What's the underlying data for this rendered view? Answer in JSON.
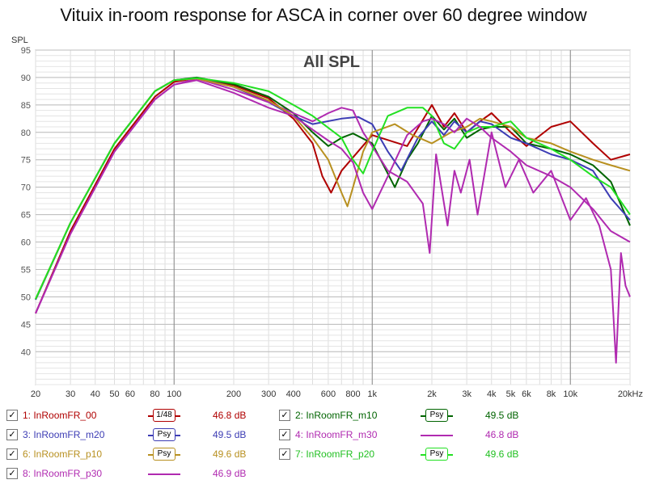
{
  "title": "Vituix in-room response for ASCA in corner over 60 degree window",
  "chart_data": {
    "type": "line",
    "title": "All SPL",
    "ylabel": "SPL",
    "xlabel": "",
    "xscale": "log",
    "xlim": [
      20,
      20000
    ],
    "ylim": [
      34,
      95
    ],
    "grid": true,
    "legend_position": "bottom",
    "x_ticks": [
      {
        "v": 20,
        "t": "20"
      },
      {
        "v": 30,
        "t": "30"
      },
      {
        "v": 40,
        "t": "40"
      },
      {
        "v": 50,
        "t": "50"
      },
      {
        "v": 60,
        "t": "60"
      },
      {
        "v": 80,
        "t": "80"
      },
      {
        "v": 100,
        "t": "100"
      },
      {
        "v": 200,
        "t": "200"
      },
      {
        "v": 300,
        "t": "300"
      },
      {
        "v": 400,
        "t": "400"
      },
      {
        "v": 600,
        "t": "600"
      },
      {
        "v": 800,
        "t": "800"
      },
      {
        "v": 1000,
        "t": "1k"
      },
      {
        "v": 2000,
        "t": "2k"
      },
      {
        "v": 3000,
        "t": "3k"
      },
      {
        "v": 4000,
        "t": "4k"
      },
      {
        "v": 5000,
        "t": "5k"
      },
      {
        "v": 6000,
        "t": "6k"
      },
      {
        "v": 8000,
        "t": "8k"
      },
      {
        "v": 10000,
        "t": "10k"
      },
      {
        "v": 20000,
        "t": "20kHz"
      }
    ],
    "y_ticks": [
      40,
      45,
      50,
      55,
      60,
      65,
      70,
      75,
      80,
      85,
      90,
      95
    ],
    "series": [
      {
        "name": "1: InRoomFR_00",
        "color": "#b00000",
        "smoothing": "1/48",
        "level": "46.8 dB",
        "x": [
          20,
          30,
          50,
          80,
          100,
          130,
          200,
          300,
          400,
          500,
          560,
          620,
          700,
          1000,
          1500,
          2000,
          2300,
          2600,
          3000,
          3500,
          4000,
          5000,
          6000,
          8000,
          10000,
          13000,
          16000,
          20000
        ],
        "y": [
          47,
          62,
          77,
          86.5,
          89.2,
          89.9,
          88.6,
          86.2,
          82.5,
          78,
          72,
          69,
          73,
          79.5,
          77.5,
          85,
          81,
          83.5,
          80,
          82,
          83.5,
          80,
          77.5,
          81,
          82,
          78,
          75,
          76
        ]
      },
      {
        "name": "2: InRoomFR_m10",
        "color": "#006400",
        "smoothing": "Psy",
        "level": "49.5 dB",
        "x": [
          20,
          30,
          50,
          80,
          100,
          130,
          200,
          300,
          400,
          500,
          600,
          700,
          800,
          1000,
          1300,
          1500,
          1700,
          2000,
          2300,
          2600,
          3000,
          3500,
          4000,
          5000,
          6000,
          8000,
          10000,
          13000,
          16000,
          20000
        ],
        "y": [
          49.5,
          63.5,
          78,
          87.5,
          89.5,
          90,
          88.8,
          86.5,
          83.5,
          80,
          77.5,
          79,
          79.8,
          78,
          70,
          75,
          78,
          83,
          80.5,
          82.5,
          79,
          80.5,
          81,
          81,
          78,
          77,
          76,
          74,
          71,
          63
        ]
      },
      {
        "name": "3: InRoomFR_m20",
        "color": "#3c3cb4",
        "smoothing": "Psy",
        "level": "49.5 dB",
        "x": [
          20,
          30,
          50,
          80,
          100,
          130,
          200,
          300,
          400,
          500,
          700,
          850,
          1000,
          1200,
          1400,
          1700,
          2000,
          2300,
          2600,
          3000,
          3500,
          4000,
          5000,
          6000,
          8000,
          10000,
          13000,
          16000,
          20000
        ],
        "y": [
          49.5,
          63.5,
          78,
          87.5,
          89.5,
          89.9,
          88.3,
          85.5,
          83,
          81.5,
          82.5,
          82.8,
          81.5,
          76.5,
          73,
          79,
          82,
          79.5,
          82,
          80,
          82,
          81.5,
          79,
          78,
          76,
          75,
          73,
          68,
          64
        ]
      },
      {
        "name": "4: InRoomFR_m30",
        "color": "#b02ab0",
        "smoothing": "",
        "level": "46.8 dB",
        "x": [
          20,
          30,
          50,
          80,
          100,
          130,
          200,
          300,
          400,
          500,
          600,
          700,
          800,
          900,
          1000,
          1200,
          1500,
          1800,
          1950,
          2100,
          2400,
          2600,
          2800,
          3100,
          3400,
          4000,
          4700,
          5500,
          6500,
          8000,
          10000,
          12000,
          14000,
          16000,
          17000,
          18000,
          19000,
          20000
        ],
        "y": [
          47,
          61.5,
          76.5,
          86,
          88.7,
          89.8,
          87.8,
          85.5,
          83.5,
          82,
          83.5,
          84.5,
          84,
          80,
          77.5,
          73,
          71,
          67,
          58,
          76,
          63,
          73,
          69,
          75,
          65,
          80,
          70,
          75,
          69,
          73,
          64,
          68,
          63,
          55,
          38,
          58,
          52,
          50
        ]
      },
      {
        "name": "6: InRoomFR_p10",
        "color": "#b89020",
        "smoothing": "Psy",
        "level": "49.6 dB",
        "x": [
          20,
          30,
          50,
          80,
          100,
          130,
          200,
          300,
          400,
          500,
          600,
          700,
          750,
          800,
          900,
          1000,
          1300,
          1600,
          2000,
          2500,
          3000,
          3500,
          4000,
          5000,
          6000,
          8000,
          10000,
          13000,
          16000,
          20000
        ],
        "y": [
          49.6,
          63.5,
          78,
          87.5,
          89.5,
          89.8,
          88.3,
          85.8,
          83,
          79,
          75,
          69,
          66.5,
          70,
          76.5,
          80,
          81.5,
          79.5,
          78,
          80,
          81,
          82.5,
          82,
          81,
          79,
          78,
          76.5,
          75,
          74,
          73
        ]
      },
      {
        "name": "7: InRoomFR_p20",
        "color": "#22e022",
        "smoothing": "Psy",
        "level": "49.6 dB",
        "x": [
          20,
          30,
          50,
          80,
          100,
          130,
          200,
          300,
          400,
          500,
          700,
          800,
          900,
          1000,
          1200,
          1500,
          1800,
          2000,
          2300,
          2600,
          3000,
          3500,
          4000,
          5000,
          6000,
          8000,
          10000,
          13000,
          16000,
          20000
        ],
        "y": [
          49.6,
          63.5,
          78,
          87.5,
          89.5,
          89.9,
          89,
          87.5,
          85,
          83,
          79,
          75,
          72.5,
          76.5,
          83,
          84.5,
          84.5,
          83,
          78,
          77,
          80,
          81,
          81,
          82,
          79,
          77,
          75,
          72,
          70,
          65
        ]
      },
      {
        "name": "8: InRoomFR_p30",
        "color": "#b02ab0",
        "smoothing": "",
        "level": "46.9 dB",
        "x": [
          20,
          30,
          50,
          80,
          100,
          130,
          200,
          300,
          400,
          500,
          600,
          700,
          800,
          900,
          1000,
          1200,
          1500,
          1800,
          2000,
          2300,
          2600,
          3000,
          3500,
          4000,
          5000,
          6000,
          8000,
          10000,
          13000,
          16000,
          20000
        ],
        "y": [
          47,
          61.5,
          76.5,
          86,
          88.7,
          89.5,
          87.2,
          84.5,
          83,
          80.5,
          78.5,
          77,
          74.5,
          69,
          66,
          72,
          79.5,
          82,
          82.5,
          81.5,
          80,
          82.5,
          81,
          79,
          76.5,
          74,
          72,
          70,
          66,
          62,
          60
        ]
      }
    ]
  },
  "legend": [
    {
      "checkbox": "✓",
      "label": "1: InRoomFR_00",
      "color": "#b00000",
      "smoothing": "1/48",
      "level": "46.8 dB"
    },
    {
      "checkbox": "✓",
      "label": "2: InRoomFR_m10",
      "color": "#006400",
      "smoothing": "Psy",
      "level": "49.5 dB"
    },
    {
      "checkbox": "✓",
      "label": "3: InRoomFR_m20",
      "color": "#3c3cb4",
      "smoothing": "Psy",
      "level": "49.5 dB"
    },
    {
      "checkbox": "✓",
      "label": "4: InRoomFR_m30",
      "color": "#b02ab0",
      "smoothing": "",
      "level": "46.8 dB"
    },
    {
      "checkbox": "✓",
      "label": "6: InRoomFR_p10",
      "color": "#b89020",
      "smoothing": "Psy",
      "level": "49.6 dB"
    },
    {
      "checkbox": "✓",
      "label": "7: InRoomFR_p20",
      "color": "#22e022",
      "smoothing": "Psy",
      "level": "49.6 dB"
    },
    {
      "checkbox": "✓",
      "label": "8: InRoomFR_p30",
      "color": "#b02ab0",
      "smoothing": "",
      "level": "46.9 dB"
    }
  ]
}
